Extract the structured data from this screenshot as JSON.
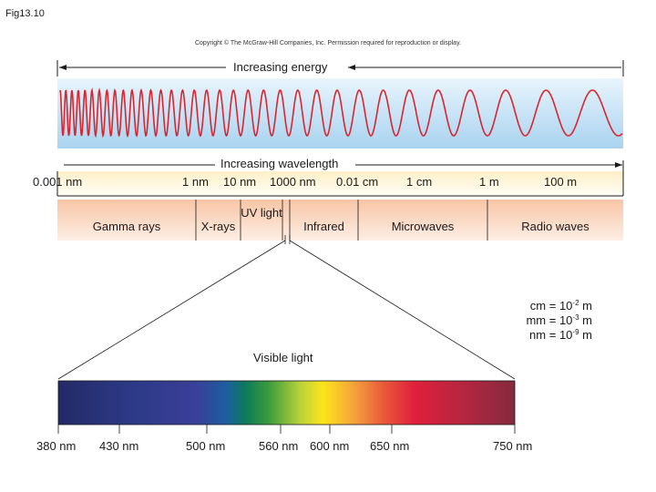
{
  "figure_label": "Fig13.10",
  "copyright": "Copyright © The McGraw-Hill Companies, Inc. Permission required for reproduction or display.",
  "energy_label": "Increasing  energy",
  "wavelength_label": "Increasing  wavelength",
  "scale_labels": [
    "0.001 nm",
    "1 nm",
    "10 nm",
    "1000 nm",
    "0.01 cm",
    "1 cm",
    "1 m",
    "100 m"
  ],
  "regions": [
    "Gamma rays",
    "X-rays",
    "UV light",
    "Infrared",
    "Microwaves",
    "Radio waves"
  ],
  "unit_notes": [
    {
      "unit": "cm",
      "base": "10",
      "exp": "-2",
      "suffix": "m"
    },
    {
      "unit": "mm",
      "base": "10",
      "exp": "-3",
      "suffix": "m"
    },
    {
      "unit": "nm",
      "base": "10",
      "exp": "-9",
      "suffix": "m"
    }
  ],
  "visible_title": "Visible light",
  "visible_ticks": [
    "380 nm",
    "430 nm",
    "500 nm",
    "560 nm",
    "600 nm",
    "650 nm",
    "750 nm"
  ],
  "colors": {
    "wave": "#d9262e",
    "wave_band_top": "#a9d3f0",
    "wave_band_bottom": "#e8f4fc",
    "scale_band_top": "#fdf0c8",
    "scale_band_bottom": "#fffdf5",
    "region_band_top": "#f8c5a6",
    "region_band_bottom": "#fdeee4"
  }
}
